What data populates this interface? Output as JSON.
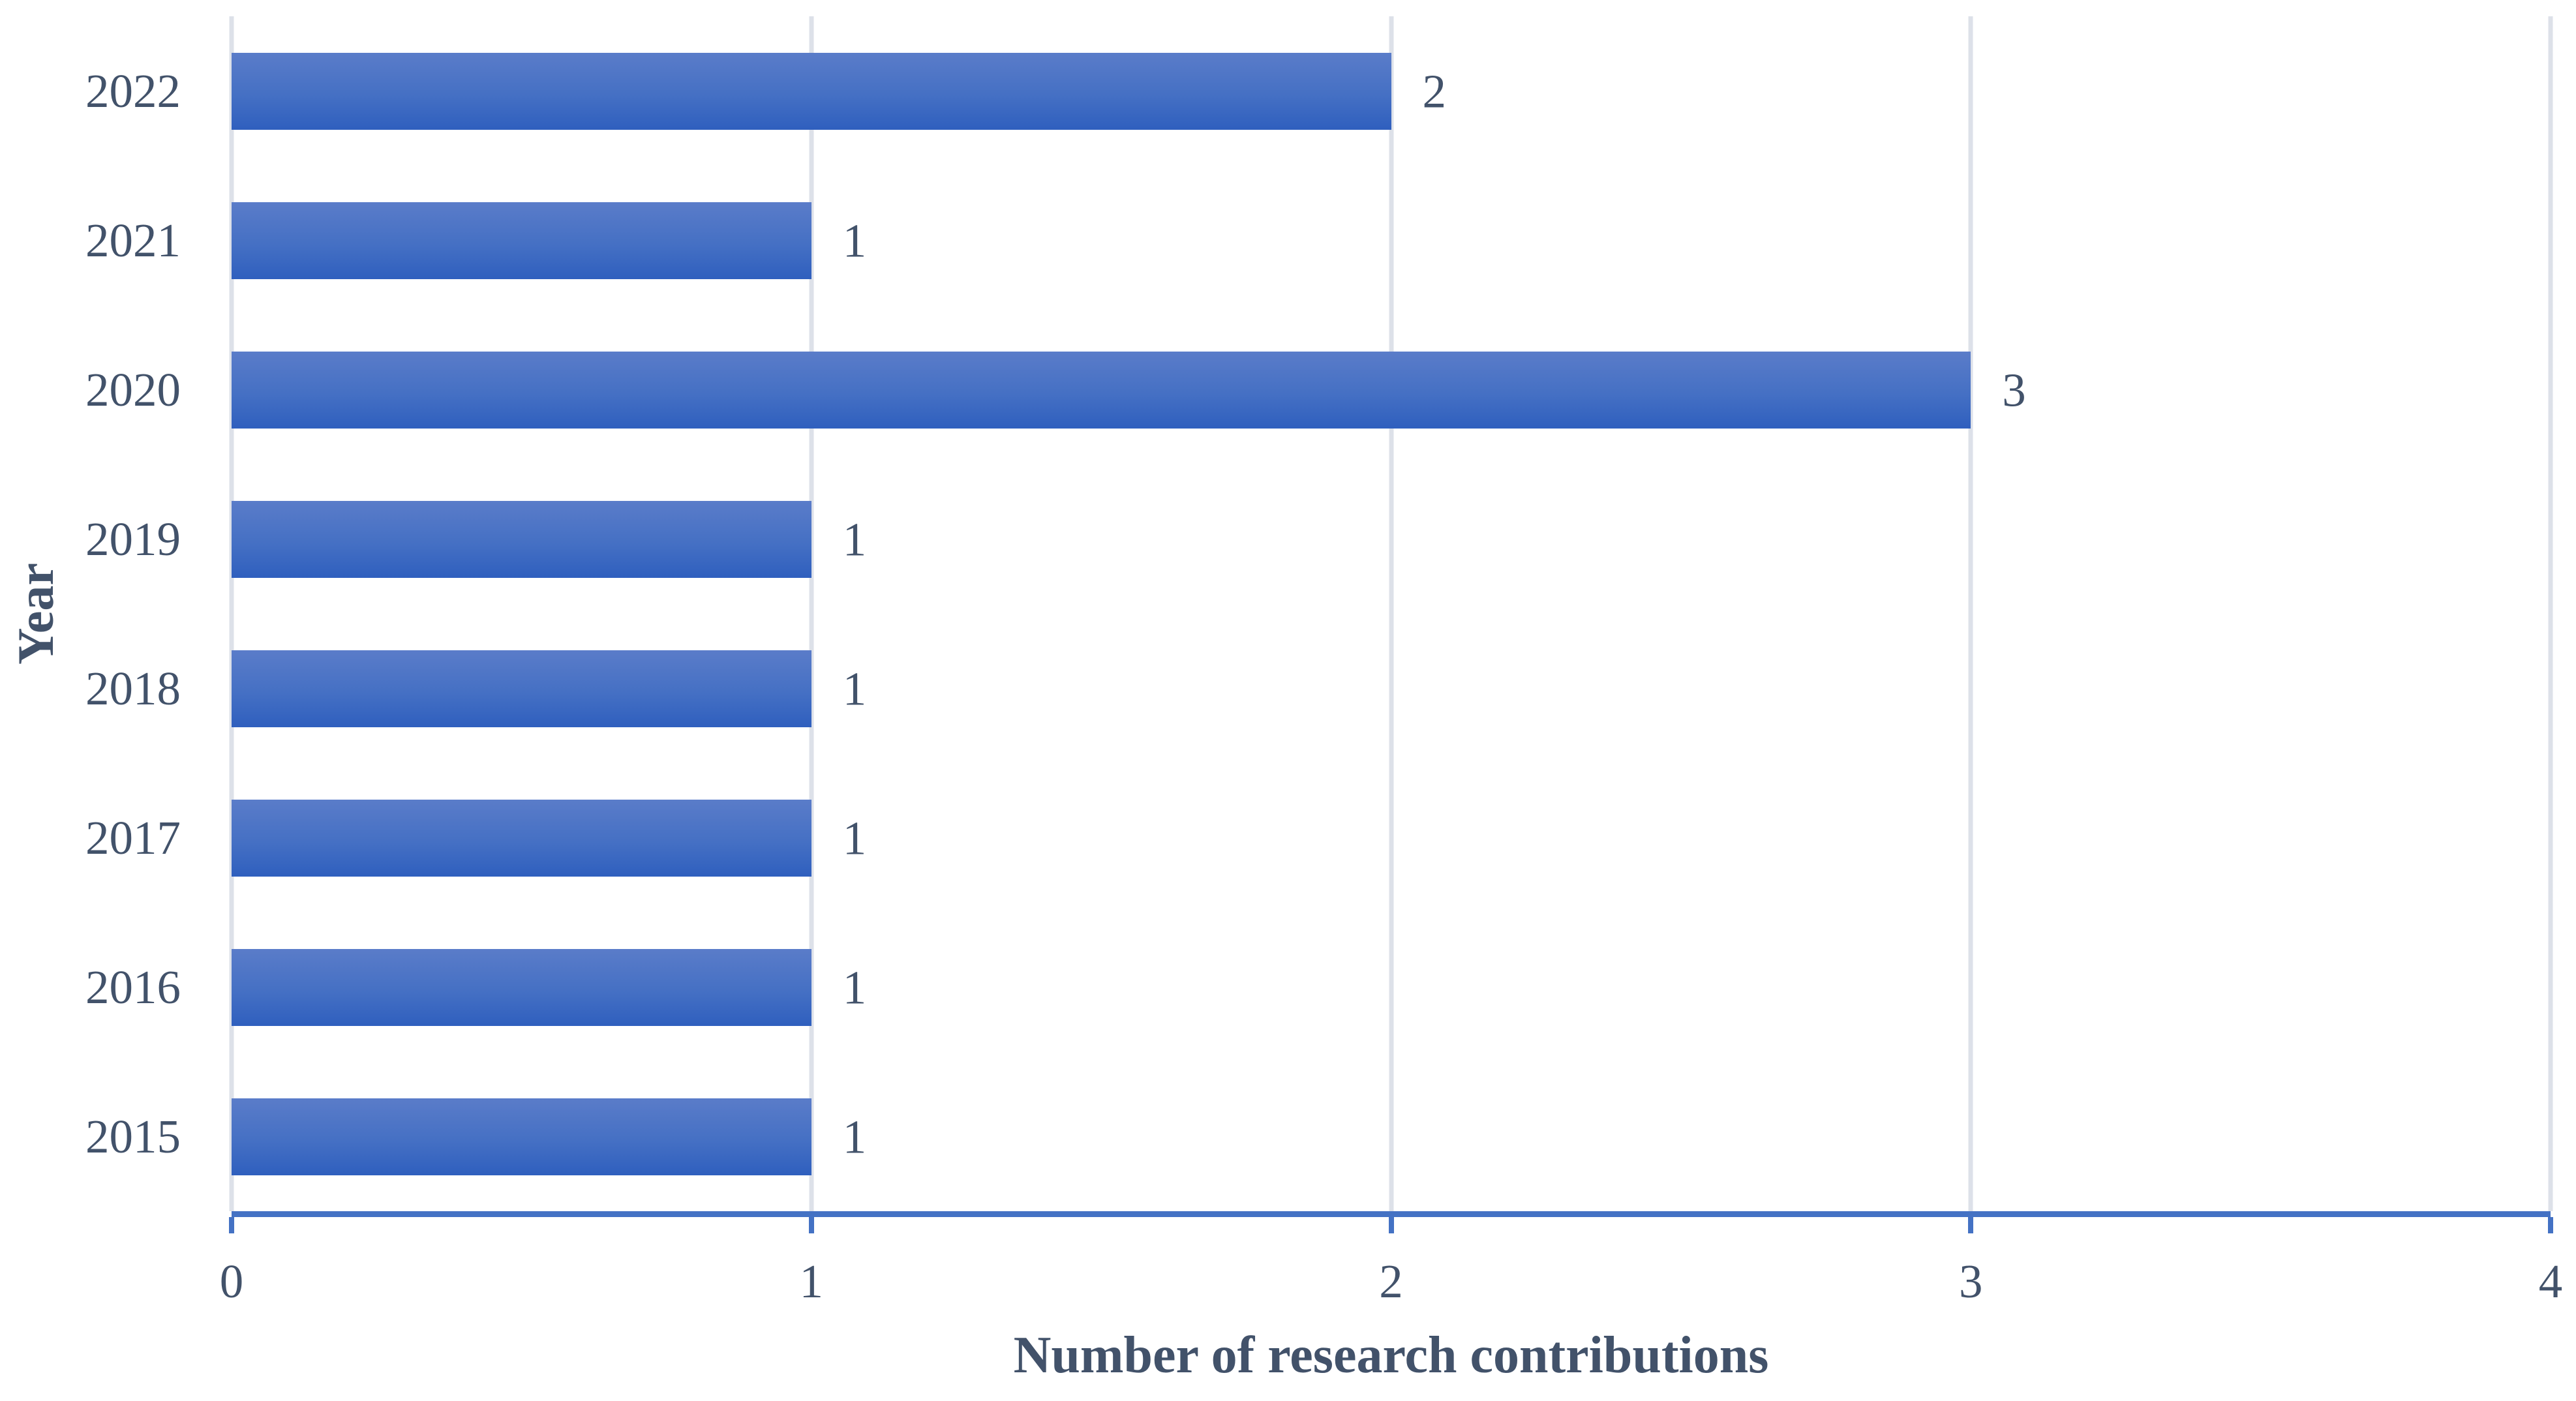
{
  "chart_data": {
    "type": "bar",
    "orientation": "horizontal",
    "title": "",
    "categories": [
      "2022",
      "2021",
      "2020",
      "2019",
      "2018",
      "2017",
      "2016",
      "2015"
    ],
    "values": [
      2,
      1,
      3,
      1,
      1,
      1,
      1,
      1
    ],
    "data_labels": [
      "2",
      "1",
      "3",
      "1",
      "1",
      "1",
      "1",
      "1"
    ],
    "xlabel": "Number of research contributions",
    "ylabel": "Year",
    "xlim": [
      0,
      4
    ],
    "x_ticks": [
      "0",
      "1",
      "2",
      "3",
      "4"
    ],
    "grid": "vertical major gridlines on",
    "legend": "none",
    "data_labels_position": "outside-end"
  },
  "colors": {
    "bar_gradient_top": "#5A7CC9",
    "bar_gradient_mid": "#4570C4",
    "bar_gradient_bottom": "#2F5FBE",
    "axis_line": "#4472C4",
    "gridline": "#DDE1E9",
    "text": "#42526A",
    "background": "#FFFFFF"
  }
}
